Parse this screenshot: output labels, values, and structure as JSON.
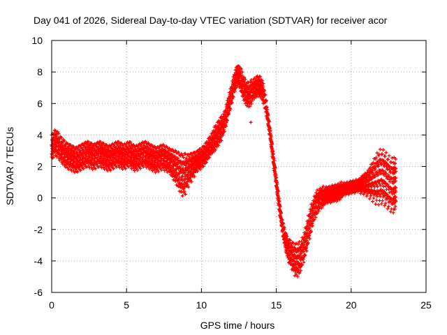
{
  "chart_data": {
    "type": "scatter",
    "title": "Day 041 of 2026, Sidereal Day-to-day VTEC variation (SDTVAR) for receiver acor",
    "xlabel": "GPS time / hours",
    "ylabel": "SDTVAR / TECUs",
    "xlim": [
      0,
      25
    ],
    "ylim": [
      -6,
      10
    ],
    "xticks": [
      0,
      5,
      10,
      15,
      20,
      25
    ],
    "yticks": [
      -6,
      -4,
      -2,
      0,
      2,
      4,
      6,
      8,
      10
    ],
    "xtick_labels": [
      "0",
      "5",
      "10",
      "15",
      "20",
      "25"
    ],
    "ytick_labels": [
      "-6",
      "-4",
      "-2",
      "0",
      "2",
      "4",
      "6",
      "8",
      "10"
    ],
    "grid": true,
    "marker": "plus",
    "series": [
      {
        "name": "SDTVAR",
        "color": "#ff0000",
        "x": [
          0.0,
          0.2,
          0.4,
          0.6,
          0.8,
          1.0,
          1.2,
          1.4,
          1.6,
          1.8,
          2.0,
          2.2,
          2.4,
          2.6,
          2.8,
          3.0,
          3.2,
          3.4,
          3.6,
          3.8,
          4.0,
          4.2,
          4.4,
          4.6,
          4.8,
          5.0,
          5.2,
          5.4,
          5.6,
          5.8,
          6.0,
          6.2,
          6.4,
          6.6,
          6.8,
          7.0,
          7.2,
          7.4,
          7.6,
          7.8,
          8.0,
          8.2,
          8.4,
          8.6,
          8.8,
          9.0,
          9.2,
          9.4,
          9.6,
          9.8,
          10.0,
          10.2,
          10.4,
          10.6,
          10.8,
          11.0,
          11.2,
          11.4,
          11.6,
          11.8,
          12.0,
          12.2,
          12.4,
          12.6,
          12.8,
          13.0,
          13.2,
          13.4,
          13.6,
          13.8,
          14.0,
          14.2,
          14.4,
          14.6,
          14.8,
          15.0,
          15.2,
          15.4,
          15.6,
          15.8,
          16.0,
          16.2,
          16.4,
          16.6,
          16.8,
          17.0,
          17.2,
          17.4,
          17.6,
          17.8,
          18.0,
          18.2,
          18.4,
          18.6,
          18.8,
          19.0,
          19.2,
          19.4,
          19.6,
          19.8,
          20.0,
          20.2,
          20.4,
          20.6,
          20.8,
          21.0,
          21.2,
          21.4,
          21.6,
          21.8,
          22.0,
          22.2,
          22.4,
          22.6,
          22.8,
          22.9
        ],
        "y": [
          3.2,
          3.5,
          3.4,
          3.1,
          2.9,
          2.7,
          2.6,
          2.5,
          2.4,
          2.5,
          2.6,
          2.7,
          2.8,
          2.7,
          2.6,
          2.7,
          2.8,
          2.7,
          2.6,
          2.5,
          2.6,
          2.7,
          2.8,
          2.7,
          2.6,
          2.7,
          2.8,
          2.6,
          2.5,
          2.6,
          2.7,
          2.8,
          2.7,
          2.6,
          2.5,
          2.4,
          2.5,
          2.6,
          2.5,
          2.4,
          2.2,
          2.0,
          1.8,
          1.5,
          1.4,
          1.6,
          1.8,
          2.0,
          2.2,
          2.4,
          2.5,
          2.7,
          3.0,
          3.3,
          3.6,
          3.9,
          4.2,
          4.5,
          5.0,
          5.8,
          6.5,
          7.3,
          7.8,
          7.6,
          7.0,
          6.6,
          6.5,
          6.8,
          7.0,
          7.1,
          7.0,
          6.4,
          5.3,
          4.0,
          2.5,
          1.0,
          -0.5,
          -1.8,
          -2.7,
          -3.3,
          -3.6,
          -3.9,
          -4.0,
          -3.8,
          -3.3,
          -2.6,
          -1.8,
          -1.1,
          -0.5,
          -0.2,
          0.0,
          0.1,
          0.2,
          0.2,
          0.3,
          0.3,
          0.4,
          0.5,
          0.6,
          0.6,
          0.7,
          0.7,
          0.8,
          0.8,
          0.9,
          0.9,
          1.0,
          1.1,
          1.2,
          1.3,
          1.4,
          1.3,
          1.1,
          0.9,
          0.8,
          0.9
        ],
        "spread": [
          0.6,
          0.6,
          0.6,
          0.6,
          0.6,
          0.6,
          0.6,
          0.6,
          0.6,
          0.6,
          0.6,
          0.6,
          0.6,
          0.6,
          0.6,
          0.6,
          0.6,
          0.6,
          0.6,
          0.6,
          0.6,
          0.6,
          0.6,
          0.6,
          0.6,
          0.6,
          0.6,
          0.6,
          0.6,
          0.6,
          0.6,
          0.6,
          0.6,
          0.6,
          0.6,
          0.6,
          0.6,
          0.6,
          0.6,
          0.6,
          0.7,
          0.8,
          0.9,
          1.0,
          1.0,
          0.8,
          0.7,
          0.6,
          0.5,
          0.5,
          0.5,
          0.5,
          0.5,
          0.5,
          0.6,
          0.6,
          0.6,
          0.5,
          0.5,
          0.5,
          0.5,
          0.5,
          0.5,
          0.6,
          0.6,
          0.6,
          0.6,
          0.5,
          0.5,
          0.5,
          0.5,
          0.4,
          0.3,
          0.3,
          0.3,
          0.3,
          0.3,
          0.4,
          0.5,
          0.6,
          0.7,
          0.8,
          0.8,
          0.7,
          0.7,
          0.7,
          0.7,
          0.6,
          0.6,
          0.5,
          0.5,
          0.4,
          0.4,
          0.4,
          0.4,
          0.4,
          0.4,
          0.3,
          0.3,
          0.3,
          0.3,
          0.3,
          0.3,
          0.4,
          0.5,
          0.6,
          0.8,
          1.0,
          1.2,
          1.3,
          1.3,
          1.3,
          1.3,
          1.3,
          1.3,
          1.2
        ]
      }
    ],
    "annotations": [
      {
        "x": 13.3,
        "y": 4.8,
        "label": ""
      }
    ]
  }
}
